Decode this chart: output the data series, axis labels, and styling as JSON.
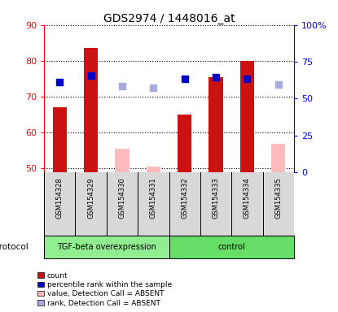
{
  "title": "GDS2974 / 1448016_at",
  "samples": [
    "GSM154328",
    "GSM154329",
    "GSM154330",
    "GSM154331",
    "GSM154332",
    "GSM154333",
    "GSM154334",
    "GSM154335"
  ],
  "bar_values_present": [
    67.0,
    83.5,
    null,
    null,
    65.0,
    75.5,
    80.0,
    null
  ],
  "bar_values_absent": [
    null,
    null,
    55.5,
    50.5,
    null,
    null,
    null,
    57.0
  ],
  "rank_present": [
    74.0,
    76.0,
    null,
    null,
    75.0,
    75.5,
    75.0,
    null
  ],
  "rank_absent": [
    null,
    null,
    73.0,
    72.5,
    null,
    null,
    null,
    73.5
  ],
  "ylim_left": [
    49,
    90
  ],
  "ylim_right": [
    0,
    100
  ],
  "yticks_left": [
    50,
    60,
    70,
    80,
    90
  ],
  "yticks_right": [
    0,
    25,
    50,
    75,
    100
  ],
  "ytick_labels_right": [
    "0",
    "25",
    "50",
    "75",
    "100%"
  ],
  "bar_color_present": "#cc1111",
  "bar_color_absent": "#ffbbbb",
  "rank_color_present": "#0000cc",
  "rank_color_absent": "#aaaadd",
  "bar_width": 0.45,
  "rank_marker_size": 6,
  "protocol_label": "protocol",
  "group1_label": "TGF-beta overexpression",
  "group2_label": "control",
  "group1_color": "#90ee90",
  "group2_color": "#66dd66",
  "sample_bg_color": "#d8d8d8",
  "legend_items": [
    {
      "label": "count",
      "color": "#cc1111"
    },
    {
      "label": "percentile rank within the sample",
      "color": "#0000cc"
    },
    {
      "label": "value, Detection Call = ABSENT",
      "color": "#ffbbbb"
    },
    {
      "label": "rank, Detection Call = ABSENT",
      "color": "#aaaadd"
    }
  ]
}
